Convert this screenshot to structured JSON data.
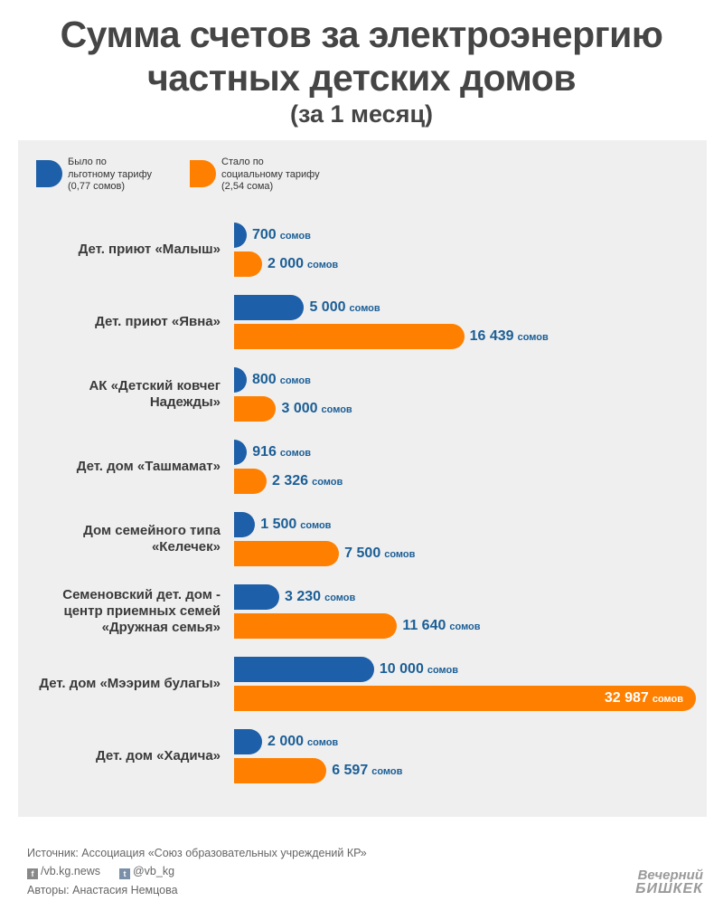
{
  "title_line1": "Сумма счетов за электроэнергию",
  "title_line2": "частных детских домов",
  "subtitle": "(за 1 месяц)",
  "legend": [
    {
      "text": "Было по\nльготному тарифу\n(0,77 сомов)",
      "color": "#1d5fa8"
    },
    {
      "text": "Стало по\nсоциальному тарифу\n(2,54 сома)",
      "color": "#ff8000"
    }
  ],
  "chart_data": {
    "type": "bar",
    "orientation": "horizontal",
    "title": "Сумма счетов за электроэнергию частных детских домов",
    "subtitle": "(за 1 месяц)",
    "unit": "сомов",
    "categories": [
      "Дет. приют «Малыш»",
      "Дет. приют «Явна»",
      "АК «Детский ковчег\nНадежды»",
      "Дет. дом «Ташмамат»",
      "Дом семейного типа\n«Келечек»",
      "Семеновский дет. дом -\nцентр приемных семей\n«Дружная семья»",
      "Дет. дом «Мээрим булагы»",
      "Дет. дом «Хадича»"
    ],
    "series": [
      {
        "name": "Было по льготному тарифу (0,77 сомов)",
        "color": "#1d5fa8",
        "values": [
          700,
          5000,
          800,
          916,
          1500,
          3230,
          10000,
          2000
        ],
        "labels": [
          "700",
          "5 000",
          "800",
          "916",
          "1 500",
          "3 230",
          "10 000",
          "2 000"
        ]
      },
      {
        "name": "Стало по социальному тарифу (2,54 сома)",
        "color": "#ff8000",
        "values": [
          2000,
          16439,
          3000,
          2326,
          7500,
          11640,
          32987,
          6597
        ],
        "labels": [
          "2 000",
          "16 439",
          "3 000",
          "2 326",
          "7 500",
          "11 640",
          "32 987",
          "6 597"
        ]
      }
    ],
    "xlim": [
      0,
      32987
    ],
    "grid": false,
    "legend_position": "top-left"
  },
  "footer": {
    "source": "Источник: Ассоциация «Союз образовательных учреждений КР»",
    "facebook_icon": "f",
    "facebook": "/vb.kg.news",
    "twitter_icon": "t",
    "twitter": "@vb_kg",
    "authors": "Авторы: Анастасия Немцова"
  },
  "logo": {
    "line1": "Вечерний",
    "line2": "БИШКЕК"
  }
}
